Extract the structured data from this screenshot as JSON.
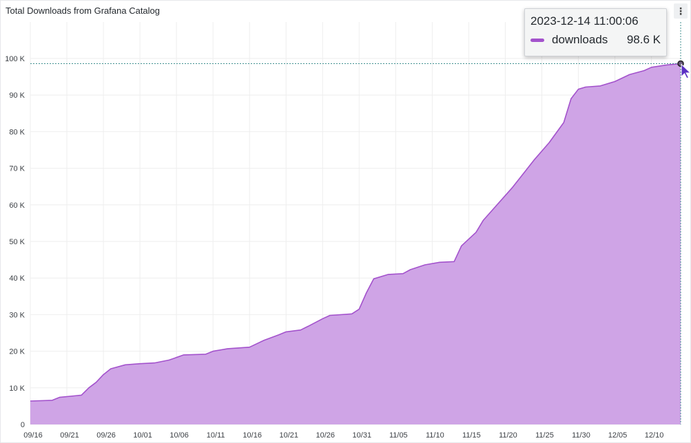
{
  "panel": {
    "title": "Total Downloads from Grafana Catalog",
    "menu_icon": "more-vertical-icon"
  },
  "tooltip": {
    "timestamp": "2023-12-14 11:00:06",
    "series_name": "downloads",
    "value": "98.6 K"
  },
  "colors": {
    "series": "#a352cc",
    "series_fill": "#cfa4e6",
    "grid": "#eeeeee",
    "crosshair": "#3f8f8f"
  },
  "chart_data": {
    "type": "area",
    "title": "Total Downloads from Grafana Catalog",
    "xlabel": "",
    "ylabel": "",
    "x_tick_labels": [
      "09/16",
      "09/21",
      "09/26",
      "10/01",
      "10/06",
      "10/11",
      "10/16",
      "10/21",
      "10/26",
      "10/31",
      "11/05",
      "11/10",
      "11/15",
      "11/20",
      "11/25",
      "11/30",
      "12/05",
      "12/10"
    ],
    "y_tick_labels": [
      "0",
      "10 K",
      "20 K",
      "30 K",
      "40 K",
      "50 K",
      "60 K",
      "70 K",
      "80 K",
      "90 K",
      "100 K"
    ],
    "ylim": [
      0,
      100000
    ],
    "xlim": [
      "2023-09-16",
      "2023-12-14"
    ],
    "grid": true,
    "legend": "tooltip",
    "series": [
      {
        "name": "downloads",
        "points": [
          [
            "2023-09-16",
            6400
          ],
          [
            "2023-09-19",
            6600
          ],
          [
            "2023-09-20",
            7400
          ],
          [
            "2023-09-22",
            7800
          ],
          [
            "2023-09-23",
            8000
          ],
          [
            "2023-09-24",
            10000
          ],
          [
            "2023-09-25",
            11500
          ],
          [
            "2023-09-26",
            13600
          ],
          [
            "2023-09-27",
            15200
          ],
          [
            "2023-09-29",
            16300
          ],
          [
            "2023-10-01",
            16600
          ],
          [
            "2023-10-03",
            16800
          ],
          [
            "2023-10-05",
            17600
          ],
          [
            "2023-10-07",
            19000
          ],
          [
            "2023-10-10",
            19200
          ],
          [
            "2023-10-11",
            20000
          ],
          [
            "2023-10-13",
            20700
          ],
          [
            "2023-10-16",
            21100
          ],
          [
            "2023-10-18",
            23000
          ],
          [
            "2023-10-20",
            24500
          ],
          [
            "2023-10-21",
            25300
          ],
          [
            "2023-10-23",
            25800
          ],
          [
            "2023-10-24",
            26800
          ],
          [
            "2023-10-26",
            28900
          ],
          [
            "2023-10-27",
            29800
          ],
          [
            "2023-10-30",
            30200
          ],
          [
            "2023-10-31",
            31500
          ],
          [
            "2023-11-01",
            36000
          ],
          [
            "2023-11-02",
            39800
          ],
          [
            "2023-11-04",
            41000
          ],
          [
            "2023-11-06",
            41200
          ],
          [
            "2023-11-07",
            42300
          ],
          [
            "2023-11-09",
            43600
          ],
          [
            "2023-11-11",
            44300
          ],
          [
            "2023-11-13",
            44500
          ],
          [
            "2023-11-14",
            48800
          ],
          [
            "2023-11-16",
            52500
          ],
          [
            "2023-11-17",
            55800
          ],
          [
            "2023-11-21",
            64800
          ],
          [
            "2023-11-24",
            72400
          ],
          [
            "2023-11-26",
            77000
          ],
          [
            "2023-11-28",
            82500
          ],
          [
            "2023-11-29",
            89000
          ],
          [
            "2023-11-30",
            91600
          ],
          [
            "2023-12-01",
            92200
          ],
          [
            "2023-12-03",
            92500
          ],
          [
            "2023-12-05",
            93700
          ],
          [
            "2023-12-07",
            95600
          ],
          [
            "2023-12-09",
            96700
          ],
          [
            "2023-12-10",
            97600
          ],
          [
            "2023-12-12",
            98200
          ],
          [
            "2023-12-14",
            98600
          ]
        ]
      }
    ]
  }
}
